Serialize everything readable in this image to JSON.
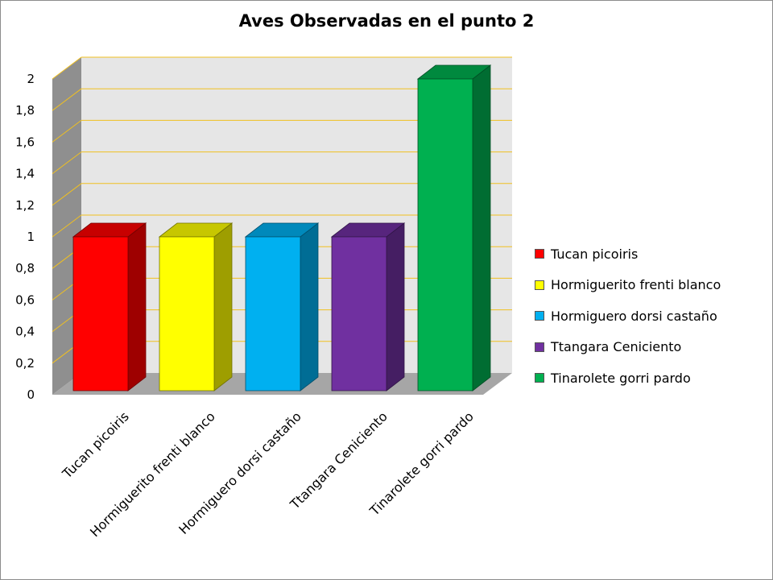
{
  "chart_data": {
    "type": "bar",
    "title": "Aves Observadas en el punto 2",
    "xlabel": "",
    "ylabel": "",
    "ylim": [
      0,
      2
    ],
    "y_ticks": [
      "0",
      "0,2",
      "0,4",
      "0,6",
      "0,8",
      "1",
      "1,2",
      "1,4",
      "1,6",
      "1,8",
      "2"
    ],
    "categories": [
      "Tucan picoiris",
      "Hormiguerito frenti blanco",
      "Hormiguero dorsi castaño",
      "Ttangara Ceniciento",
      "Tinarolete gorri pardo"
    ],
    "values": [
      1,
      1,
      1,
      1,
      2
    ],
    "colors": [
      "#ff0000",
      "#ffff00",
      "#00b0f0",
      "#7030a0",
      "#00b050"
    ],
    "gridlines": true,
    "grid_color": "#f0c020",
    "legend": {
      "position": "right",
      "entries": [
        "Tucan picoiris",
        "Hormiguerito frenti blanco",
        "Hormiguero dorsi castaño",
        "Ttangara Ceniciento",
        "Tinarolete gorri pardo"
      ]
    },
    "style": "3d-column"
  }
}
